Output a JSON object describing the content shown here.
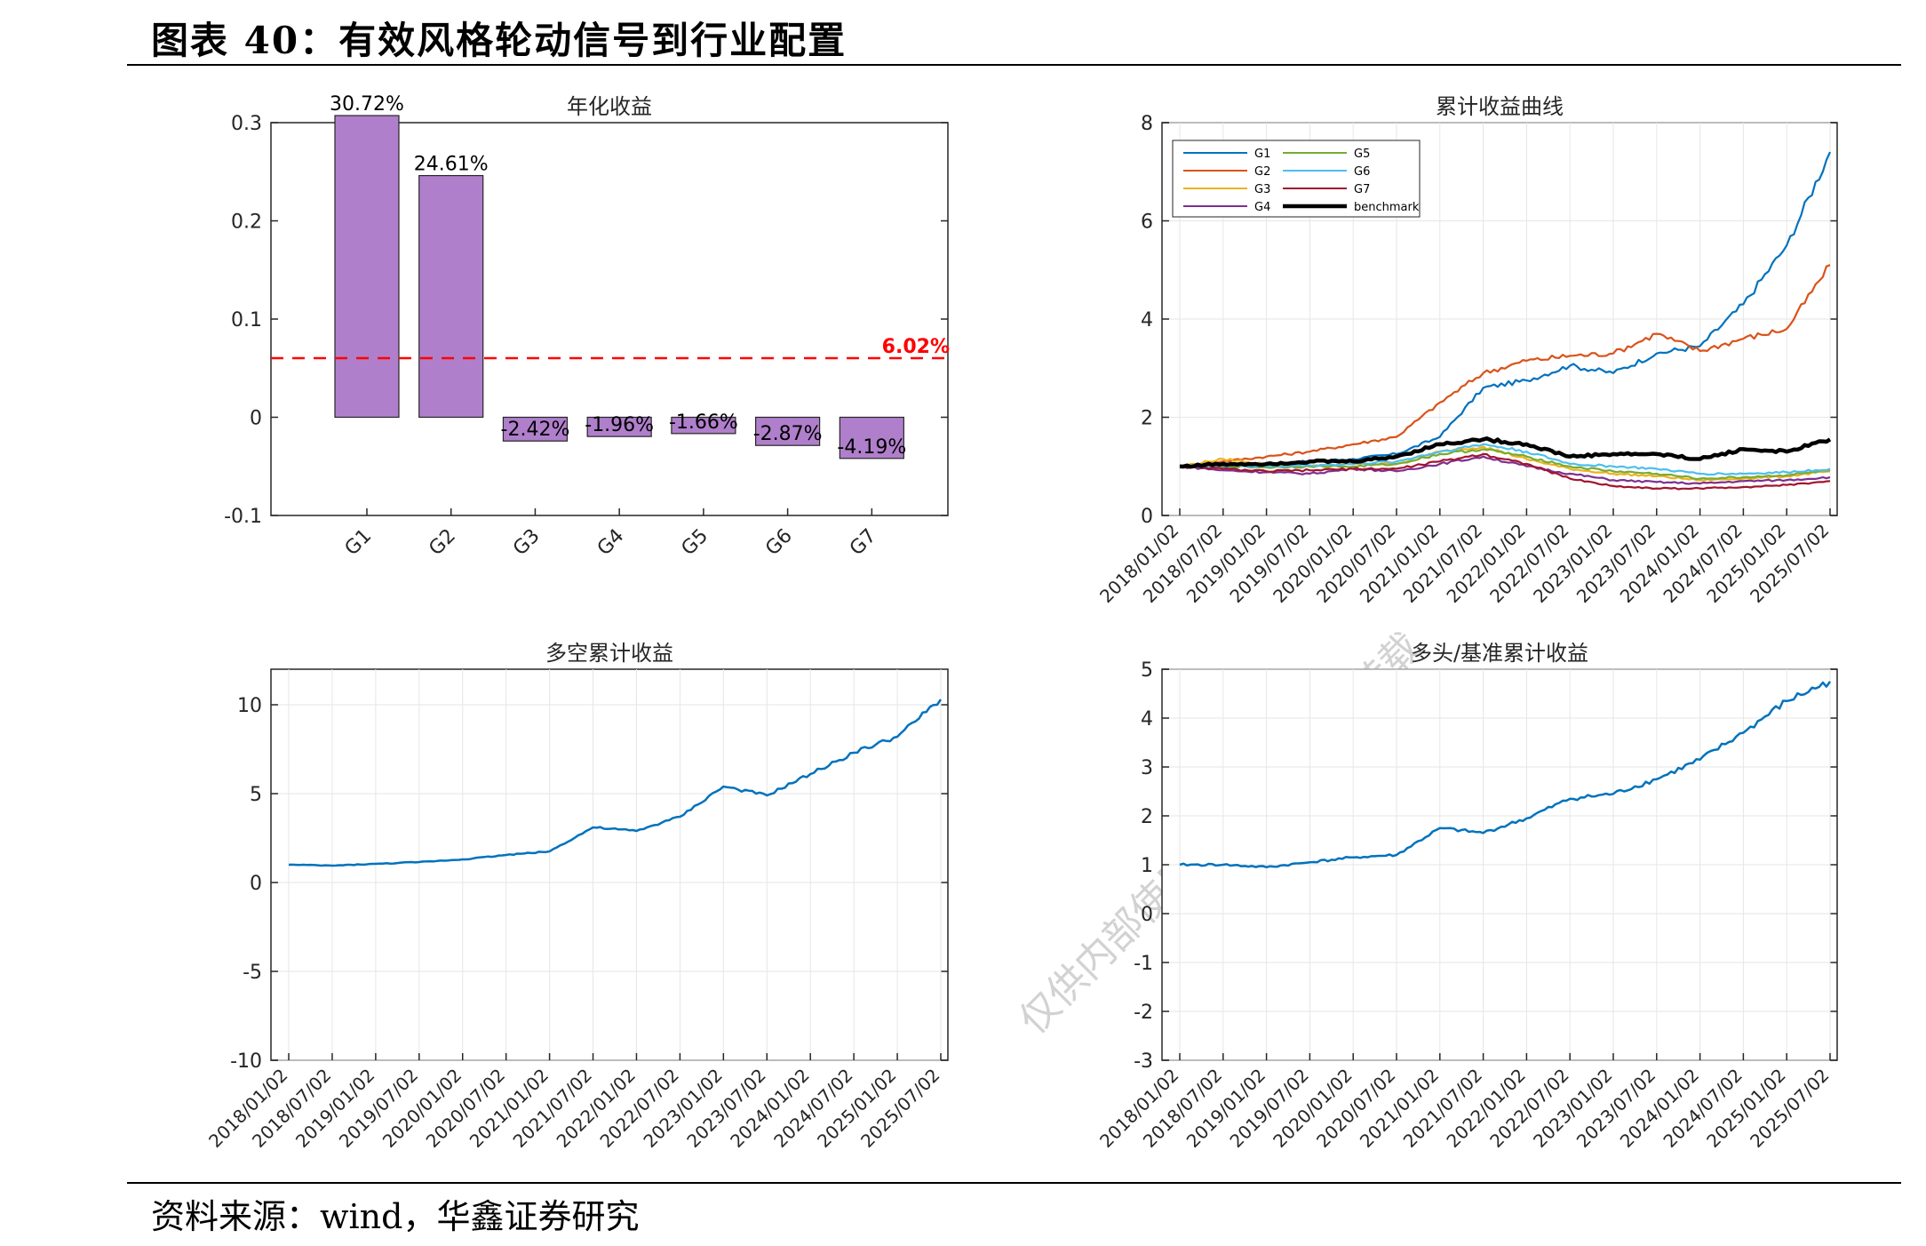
{
  "figure_title": "图表 40：有效风格轮动信号到行业配置",
  "source": "资料来源：wind，华鑫证券研究",
  "watermark": "仅供内部使用，不可传播与转载",
  "colors": {
    "bar": "#B07FCB",
    "benchmark_line": "#FF0000",
    "G1": "#0072BD",
    "G2": "#D95319",
    "G3": "#EDB120",
    "G4": "#7E2F8E",
    "G5": "#77AC30",
    "G6": "#4DBEEE",
    "G7": "#A2142F",
    "benchmark": "#000000",
    "single": "#0072BD"
  },
  "chart_data": [
    {
      "type": "bar",
      "title": "年化收益",
      "categories": [
        "G1",
        "G2",
        "G3",
        "G4",
        "G5",
        "G6",
        "G7"
      ],
      "values": [
        0.3072,
        0.2461,
        -0.0242,
        -0.0196,
        -0.0166,
        -0.0287,
        -0.0419
      ],
      "data_labels": [
        "30.72%",
        "24.61%",
        "-2.42%",
        "-1.96%",
        "-1.66%",
        "-2.87%",
        "-4.19%"
      ],
      "reference_line": {
        "value": 0.0602,
        "label": "6.02%"
      },
      "ylim": [
        -0.1,
        0.3
      ],
      "yticks": [
        "-0.1",
        "0",
        "0.1",
        "0.2",
        "0.3"
      ]
    },
    {
      "type": "line",
      "title": "累计收益曲线",
      "ylim": [
        0,
        8
      ],
      "yticks": [
        "0",
        "2",
        "4",
        "6",
        "8"
      ],
      "x": [
        "2018/01/02",
        "2018/07/02",
        "2019/01/02",
        "2019/07/02",
        "2020/01/02",
        "2020/07/02",
        "2021/01/02",
        "2021/07/02",
        "2022/01/02",
        "2022/07/02",
        "2023/01/02",
        "2023/07/02",
        "2024/01/02",
        "2024/07/02",
        "2025/01/02",
        "2025/07/02"
      ],
      "legend_position": "top-left",
      "series": [
        {
          "name": "G1",
          "values": [
            1.0,
            1.0,
            1.05,
            1.1,
            1.15,
            1.25,
            1.6,
            2.6,
            2.75,
            3.05,
            2.9,
            3.3,
            3.45,
            4.3,
            5.5,
            7.4
          ]
        },
        {
          "name": "G2",
          "values": [
            1.0,
            1.1,
            1.2,
            1.3,
            1.45,
            1.6,
            2.3,
            2.9,
            3.15,
            3.25,
            3.3,
            3.7,
            3.35,
            3.6,
            3.8,
            5.1
          ]
        },
        {
          "name": "G3",
          "values": [
            1.0,
            1.15,
            1.05,
            1.0,
            1.05,
            1.05,
            1.3,
            1.4,
            1.15,
            0.95,
            0.85,
            0.8,
            0.72,
            0.75,
            0.8,
            0.9
          ]
        },
        {
          "name": "G4",
          "values": [
            1.0,
            0.92,
            0.88,
            0.85,
            0.95,
            0.9,
            1.05,
            1.2,
            1.0,
            0.85,
            0.72,
            0.68,
            0.65,
            0.7,
            0.72,
            0.78
          ]
        },
        {
          "name": "G5",
          "values": [
            1.0,
            1.0,
            0.98,
            1.0,
            1.0,
            1.05,
            1.25,
            1.35,
            1.2,
            1.0,
            0.9,
            0.85,
            0.75,
            0.78,
            0.82,
            0.92
          ]
        },
        {
          "name": "G6",
          "values": [
            1.0,
            1.02,
            1.0,
            1.02,
            1.05,
            1.1,
            1.3,
            1.45,
            1.3,
            1.05,
            1.0,
            0.95,
            0.85,
            0.85,
            0.88,
            0.95
          ]
        },
        {
          "name": "G7",
          "values": [
            1.0,
            0.95,
            0.9,
            0.92,
            0.95,
            0.95,
            1.1,
            1.25,
            1.05,
            0.75,
            0.6,
            0.55,
            0.55,
            0.58,
            0.62,
            0.7
          ]
        },
        {
          "name": "benchmark",
          "values": [
            1.0,
            1.05,
            1.05,
            1.1,
            1.1,
            1.2,
            1.45,
            1.55,
            1.45,
            1.2,
            1.25,
            1.25,
            1.15,
            1.35,
            1.3,
            1.55
          ]
        }
      ]
    },
    {
      "type": "line",
      "title": "多空累计收益",
      "ylim": [
        -10,
        12
      ],
      "yticks": [
        "-10",
        "-5",
        "0",
        "5",
        "10"
      ],
      "x": [
        "2018/01/02",
        "2018/07/02",
        "2019/01/02",
        "2019/07/02",
        "2020/01/02",
        "2020/07/02",
        "2021/01/02",
        "2021/07/02",
        "2022/01/02",
        "2022/07/02",
        "2023/01/02",
        "2023/07/02",
        "2024/01/02",
        "2024/07/02",
        "2025/01/02",
        "2025/07/02"
      ],
      "series": [
        {
          "values": [
            1.0,
            0.95,
            1.05,
            1.15,
            1.3,
            1.55,
            1.75,
            3.1,
            2.9,
            3.7,
            5.4,
            4.9,
            6.1,
            7.3,
            8.2,
            10.3
          ]
        }
      ]
    },
    {
      "type": "line",
      "title": "多头/基准累计收益",
      "ylim": [
        -3,
        5
      ],
      "yticks": [
        "-3",
        "-2",
        "-1",
        "0",
        "1",
        "2",
        "3",
        "4",
        "5"
      ],
      "x": [
        "2018/01/02",
        "2018/07/02",
        "2019/01/02",
        "2019/07/02",
        "2020/01/02",
        "2020/07/02",
        "2021/01/02",
        "2021/07/02",
        "2022/01/02",
        "2022/07/02",
        "2023/01/02",
        "2023/07/02",
        "2024/01/02",
        "2024/07/02",
        "2025/01/02",
        "2025/07/02"
      ],
      "series": [
        {
          "values": [
            1.0,
            1.0,
            0.95,
            1.05,
            1.15,
            1.2,
            1.75,
            1.65,
            1.95,
            2.35,
            2.45,
            2.75,
            3.15,
            3.7,
            4.35,
            4.75
          ]
        }
      ]
    }
  ]
}
